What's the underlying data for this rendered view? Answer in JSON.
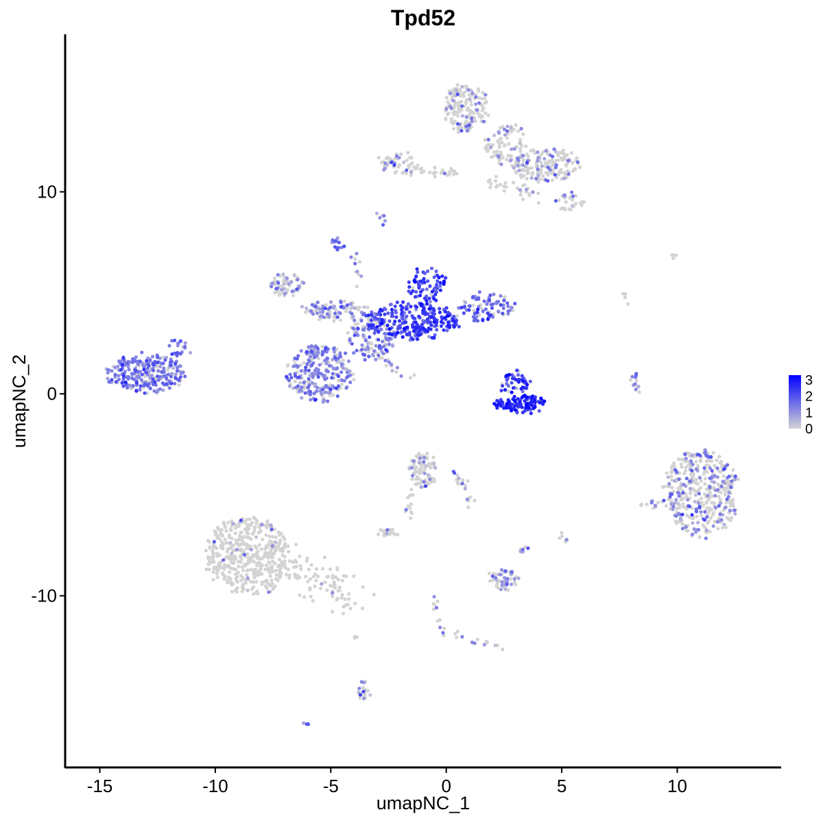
{
  "chart_data": {
    "type": "scatter",
    "title": "Tpd52",
    "xlabel": "umapNC_1",
    "ylabel": "umapNC_2",
    "xlim": [
      -16.5,
      14.5
    ],
    "ylim": [
      -18.5,
      17.8
    ],
    "x_ticks": [
      -15,
      -10,
      -5,
      0,
      5,
      10
    ],
    "x_tick_labels": [
      "-15",
      "-10",
      "-5",
      "0",
      "5",
      "10"
    ],
    "y_ticks": [
      -10,
      0,
      10
    ],
    "y_tick_labels": [
      "-10",
      "0",
      "10"
    ],
    "grid": false,
    "color_scale": {
      "low": "#d3d3d3",
      "high": "#0000ff",
      "min": 0,
      "max": 3.3
    },
    "legend": {
      "position": "right",
      "breaks": [
        "3",
        "2",
        "1",
        "0"
      ],
      "break_values": [
        3,
        2,
        1,
        0
      ]
    },
    "point_colors": {
      "expressed_mid": "#9b8be6",
      "expressed_high": "#5a3ef0"
    },
    "clusters": [
      {
        "cx": -13.0,
        "cy": 1.0,
        "rx": 1.7,
        "ry": 0.9,
        "n": 260,
        "expr": 1.3,
        "p": 0.9
      },
      {
        "cx": -11.6,
        "cy": 2.2,
        "rx": 0.5,
        "ry": 0.5,
        "n": 20,
        "expr": 1.2,
        "p": 0.9
      },
      {
        "cx": -5.5,
        "cy": 1.0,
        "rx": 1.4,
        "ry": 1.4,
        "n": 260,
        "expr": 1.2,
        "p": 0.7
      },
      {
        "cx": -3.3,
        "cy": 2.8,
        "rx": 1.0,
        "ry": 1.1,
        "n": 120,
        "expr": 1.4,
        "p": 0.75
      },
      {
        "cx": -1.5,
        "cy": 3.6,
        "rx": 2.0,
        "ry": 0.9,
        "n": 260,
        "expr": 2.2,
        "p": 0.95
      },
      {
        "cx": -0.8,
        "cy": 5.4,
        "rx": 0.8,
        "ry": 0.8,
        "n": 70,
        "expr": 2.3,
        "p": 0.95
      },
      {
        "cx": 1.8,
        "cy": 4.3,
        "rx": 1.2,
        "ry": 0.7,
        "n": 90,
        "expr": 1.6,
        "p": 0.85
      },
      {
        "cx": -4.8,
        "cy": 4.1,
        "rx": 1.4,
        "ry": 0.45,
        "n": 90,
        "expr": 1.0,
        "p": 0.5
      },
      {
        "cx": -6.9,
        "cy": 5.4,
        "rx": 0.7,
        "ry": 0.6,
        "n": 60,
        "expr": 1.0,
        "p": 0.45
      },
      {
        "cx": -4.7,
        "cy": 7.4,
        "rx": 0.2,
        "ry": 0.3,
        "n": 14,
        "expr": 1.6,
        "p": 0.9
      },
      {
        "cx": 3.2,
        "cy": -0.5,
        "rx": 1.1,
        "ry": 0.4,
        "n": 110,
        "expr": 2.6,
        "p": 1.0
      },
      {
        "cx": 3.0,
        "cy": 0.5,
        "rx": 0.6,
        "ry": 0.6,
        "n": 45,
        "expr": 2.2,
        "p": 0.95
      },
      {
        "cx": 11.0,
        "cy": -4.9,
        "rx": 1.6,
        "ry": 2.2,
        "n": 420,
        "expr": 1.2,
        "p": 0.35
      },
      {
        "cx": 0.8,
        "cy": 14.1,
        "rx": 0.9,
        "ry": 1.2,
        "n": 170,
        "expr": 1.0,
        "p": 0.2
      },
      {
        "cx": 4.3,
        "cy": 11.3,
        "rx": 1.5,
        "ry": 0.8,
        "n": 180,
        "expr": 1.0,
        "p": 0.2
      },
      {
        "cx": 2.6,
        "cy": 12.3,
        "rx": 0.9,
        "ry": 1.0,
        "n": 80,
        "expr": 1.0,
        "p": 0.2
      },
      {
        "cx": -2.1,
        "cy": 11.4,
        "rx": 0.8,
        "ry": 0.5,
        "n": 50,
        "expr": 1.0,
        "p": 0.2
      },
      {
        "cx": 5.3,
        "cy": 9.5,
        "rx": 0.6,
        "ry": 0.4,
        "n": 30,
        "expr": 1.0,
        "p": 0.35
      },
      {
        "cx": -8.6,
        "cy": -8.0,
        "rx": 1.8,
        "ry": 1.9,
        "n": 450,
        "expr": 1.0,
        "p": 0.06
      },
      {
        "cx": -1.0,
        "cy": -3.8,
        "rx": 0.6,
        "ry": 0.8,
        "n": 90,
        "expr": 1.0,
        "p": 0.15
      },
      {
        "cx": 2.5,
        "cy": -9.2,
        "rx": 0.6,
        "ry": 0.5,
        "n": 55,
        "expr": 1.0,
        "p": 0.45
      },
      {
        "cx": -2.5,
        "cy": -6.9,
        "rx": 0.4,
        "ry": 0.2,
        "n": 18,
        "expr": 1.0,
        "p": 0.1
      },
      {
        "cx": -3.6,
        "cy": -14.7,
        "rx": 0.25,
        "ry": 0.5,
        "n": 18,
        "expr": 1.0,
        "p": 0.6
      },
      {
        "cx": 8.2,
        "cy": 0.5,
        "rx": 0.2,
        "ry": 0.5,
        "n": 14,
        "expr": 1.0,
        "p": 0.4
      },
      {
        "cx": 8.8,
        "cy": -5.4,
        "rx": 0.3,
        "ry": 0.3,
        "n": 10,
        "expr": 1.0,
        "p": 0.6
      },
      {
        "cx": 5.1,
        "cy": -7.2,
        "rx": 0.15,
        "ry": 0.25,
        "n": 6,
        "expr": 1.0,
        "p": 0.3
      },
      {
        "cx": -6.1,
        "cy": -16.4,
        "rx": 0.1,
        "ry": 0.1,
        "n": 4,
        "expr": 1.4,
        "p": 1.0
      }
    ],
    "strands": [
      {
        "x0": -1.8,
        "y0": 11.1,
        "x1": 0.5,
        "y1": 11.0,
        "n": 30,
        "w": 0.12,
        "expr": 1.0,
        "p": 0.1
      },
      {
        "x0": 1.8,
        "y0": 10.6,
        "x1": 3.8,
        "y1": 9.8,
        "n": 30,
        "w": 0.2,
        "expr": 1.0,
        "p": 0.15
      },
      {
        "x0": -3.6,
        "y0": 2.3,
        "x1": -1.4,
        "y1": 0.7,
        "n": 25,
        "w": 0.1,
        "expr": 1.0,
        "p": 0.4
      },
      {
        "x0": -6.9,
        "y0": -8.5,
        "x1": -4.0,
        "y1": -10.3,
        "n": 90,
        "w": 0.5,
        "expr": 1.0,
        "p": 0.05
      },
      {
        "x0": -1.4,
        "y0": -4.7,
        "x1": -1.8,
        "y1": -6.3,
        "n": 12,
        "w": 0.1,
        "expr": 1.0,
        "p": 0.3
      },
      {
        "x0": 0.3,
        "y0": -3.8,
        "x1": 1.2,
        "y1": -5.5,
        "n": 20,
        "w": 0.15,
        "expr": 1.0,
        "p": 0.15
      },
      {
        "x0": -0.6,
        "y0": -10.2,
        "x1": -0.1,
        "y1": -11.9,
        "n": 12,
        "w": 0.1,
        "expr": 1.0,
        "p": 0.3
      },
      {
        "x0": 0.3,
        "y0": -11.9,
        "x1": 2.6,
        "y1": -12.6,
        "n": 15,
        "w": 0.1,
        "expr": 1.0,
        "p": 0.3
      },
      {
        "x0": -4.0,
        "y0": 6.8,
        "x1": -3.6,
        "y1": 5.3,
        "n": 10,
        "w": 0.1,
        "expr": 1.0,
        "p": 0.6
      },
      {
        "x0": -2.9,
        "y0": 9.0,
        "x1": -2.8,
        "y1": 8.3,
        "n": 6,
        "w": 0.1,
        "expr": 1.0,
        "p": 0.6
      },
      {
        "x0": 3.0,
        "y0": -8.0,
        "x1": 3.5,
        "y1": -7.5,
        "n": 6,
        "w": 0.1,
        "expr": 1.0,
        "p": 0.6
      },
      {
        "x0": 7.7,
        "y0": 5.0,
        "x1": 7.8,
        "y1": 4.5,
        "n": 4,
        "w": 0.05,
        "expr": 1.0,
        "p": 0.0
      },
      {
        "x0": 9.5,
        "y0": 6.7,
        "x1": 10.0,
        "y1": 6.9,
        "n": 4,
        "w": 0.05,
        "expr": 1.0,
        "p": 0.0
      },
      {
        "x0": -3.9,
        "y0": -11.9,
        "x1": -3.9,
        "y1": -12.2,
        "n": 3,
        "w": 0.05,
        "expr": 1.0,
        "p": 0.0
      }
    ]
  }
}
